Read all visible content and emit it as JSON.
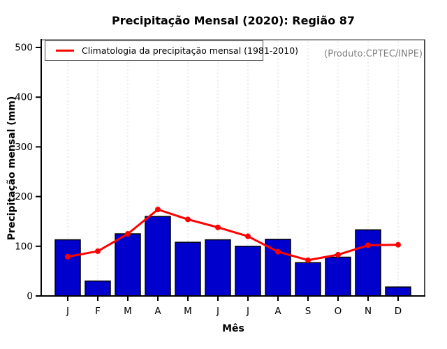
{
  "chart_data": {
    "type": "bar",
    "title": "Precipitação Mensal (2020): Região 87",
    "xlabel": "Mês",
    "ylabel": "Precipitação mensal (mm)",
    "annotation": "(Produto:CPTEC/INPE)",
    "ylim": [
      0,
      500
    ],
    "yticks": [
      0,
      100,
      200,
      300,
      400,
      500
    ],
    "categories": [
      "J",
      "F",
      "M",
      "A",
      "M",
      "J",
      "J",
      "A",
      "S",
      "O",
      "N",
      "D"
    ],
    "grid": "vertical-dotted",
    "legend_position": "top-left",
    "series": [
      {
        "name": "Precipitação mensal (2020)",
        "type": "bar",
        "color": "#0000CD",
        "values": [
          113,
          30,
          125,
          160,
          108,
          113,
          100,
          114,
          67,
          78,
          133,
          18
        ]
      },
      {
        "name": "Climatologia da precipitação mensal (1981-2010)",
        "type": "line",
        "color": "#FF0000",
        "values": [
          79,
          90,
          125,
          174,
          154,
          138,
          120,
          89,
          72,
          83,
          102,
          103
        ]
      }
    ],
    "colors": {
      "bar_fill": "#0000CD",
      "bar_border": "#000000",
      "line": "#FF0000",
      "grid": "#DBDBDB",
      "axis": "#000000",
      "box_top": "#999999",
      "box_right": "#4d4d4d",
      "annotation_text": "#7F7F7F"
    }
  }
}
